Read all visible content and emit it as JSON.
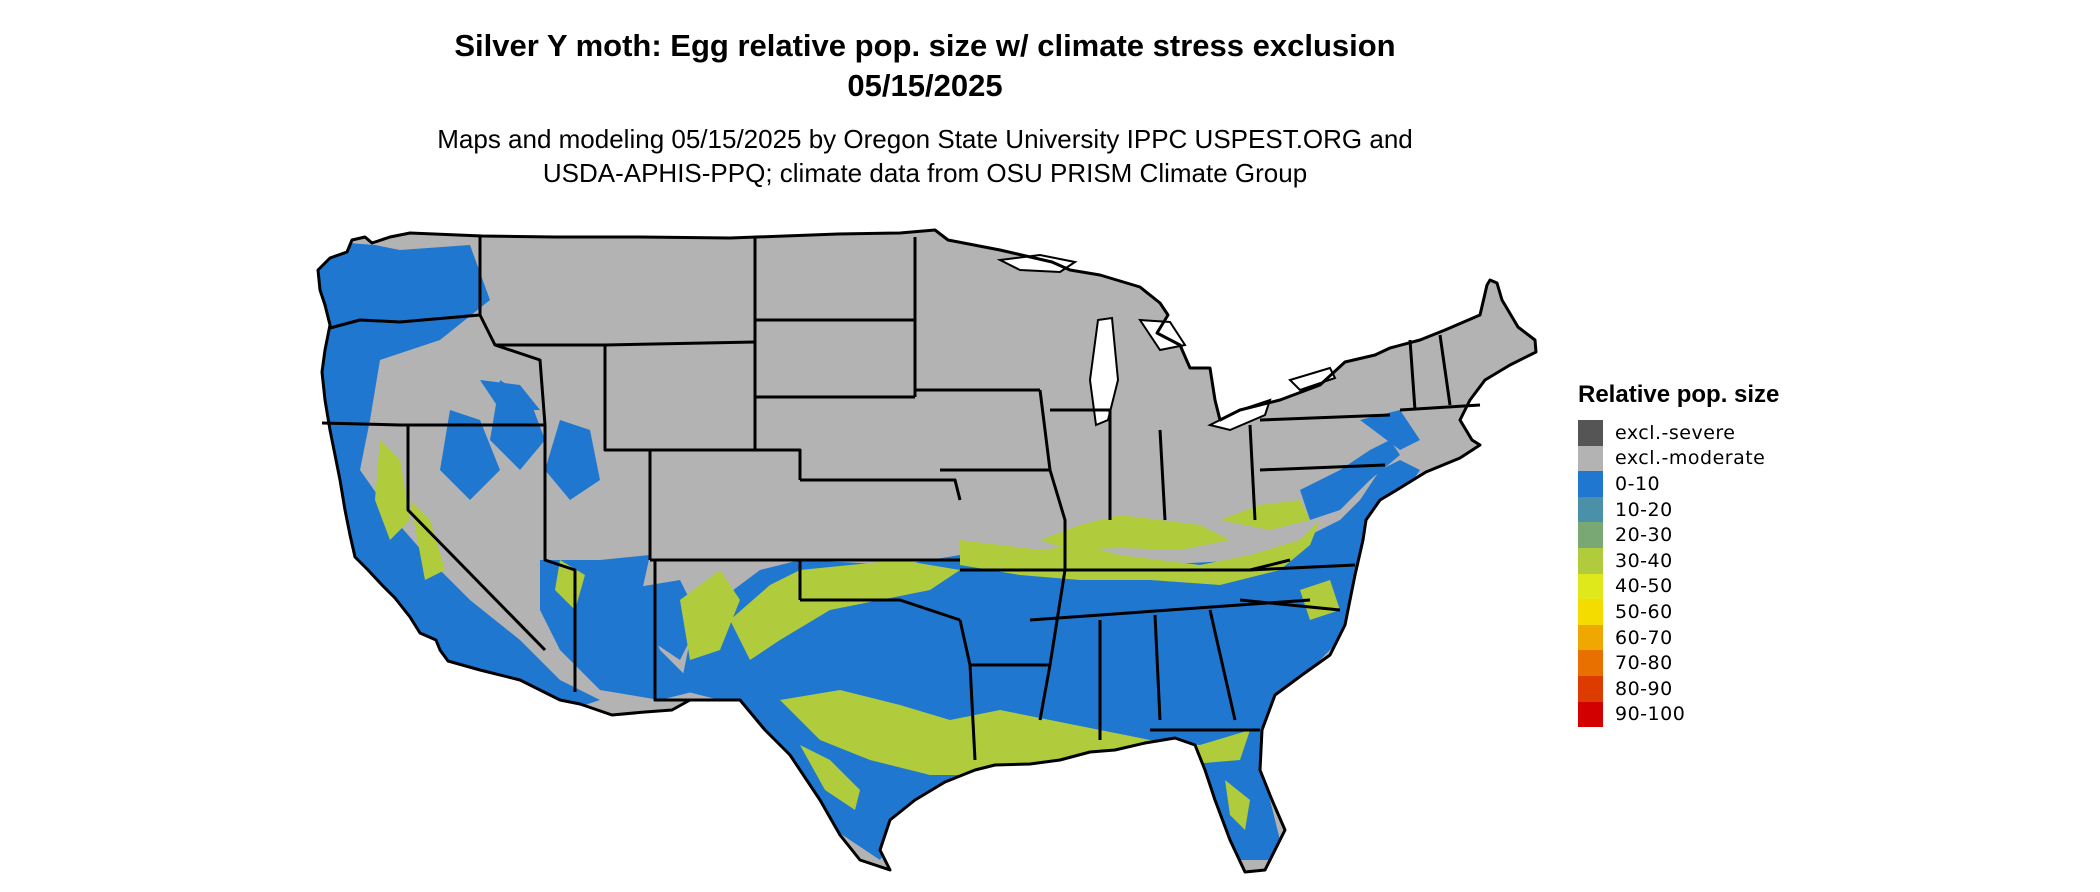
{
  "title": {
    "line1": "Silver Y moth: Egg relative pop. size w/ climate stress exclusion",
    "line2": "05/15/2025"
  },
  "subtitle": {
    "line1": "Maps and modeling 05/15/2025 by Oregon State University IPPC USPEST.ORG and",
    "line2": "USDA-APHIS-PPQ; climate data from OSU PRISM Climate Group"
  },
  "legend": {
    "title": "Relative pop. size",
    "items": [
      {
        "label": "excl.-severe",
        "color": "#555555"
      },
      {
        "label": "excl.-moderate",
        "color": "#b3b3b3"
      },
      {
        "label": "0-10",
        "color": "#1f77d0"
      },
      {
        "label": "10-20",
        "color": "#4a90a8"
      },
      {
        "label": "20-30",
        "color": "#7aa874"
      },
      {
        "label": "30-40",
        "color": "#b0cc3c"
      },
      {
        "label": "40-50",
        "color": "#dfe81a"
      },
      {
        "label": "50-60",
        "color": "#f5dc00"
      },
      {
        "label": "60-70",
        "color": "#f0a800"
      },
      {
        "label": "70-80",
        "color": "#e87000"
      },
      {
        "label": "80-90",
        "color": "#dc3c00"
      },
      {
        "label": "90-100",
        "color": "#d20000"
      }
    ]
  },
  "map": {
    "region": "Contiguous United States",
    "colors": {
      "excluded": "#b3b3b3",
      "low": "#1f77d0",
      "mid": "#b0cc3c",
      "border": "#000000",
      "water": "#ffffff"
    }
  }
}
